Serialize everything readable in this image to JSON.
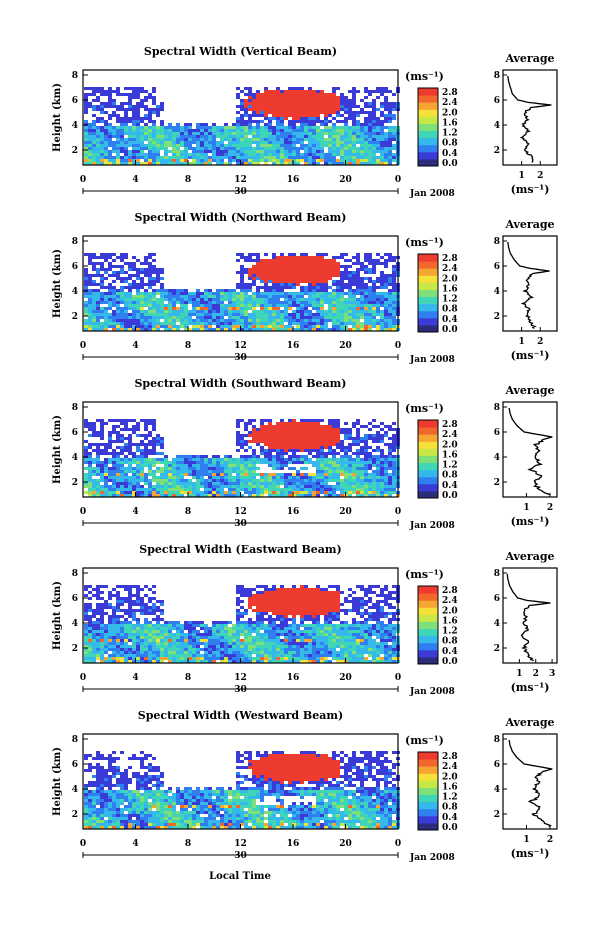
{
  "colorbar": {
    "unit": "(ms⁻¹)",
    "ticks": [
      "0.0",
      "0.4",
      "0.8",
      "1.2",
      "1.6",
      "2.0",
      "2.4",
      "2.8"
    ],
    "colors": [
      "#2c2c7a",
      "#3a3ad6",
      "#2f7ff0",
      "#35b8ea",
      "#3fd6b8",
      "#7fe07a",
      "#c8e84a",
      "#f5e13a",
      "#f7a532",
      "#f2682c",
      "#ee3b30"
    ]
  },
  "shared": {
    "xlabel": "Local Time",
    "date_label": "Jan 2008",
    "date_tick": "30",
    "x_ticks": [
      "0",
      "4",
      "8",
      "12",
      "16",
      "20",
      "0"
    ],
    "y_ticks": [
      "2",
      "4",
      "6",
      "8"
    ],
    "ylabel": "Height (km)",
    "avg_title": "Average",
    "avg_unit": "(ms⁻¹)"
  },
  "chart_data": [
    {
      "type": "heatmap",
      "title": "Spectral Width (Vertical Beam)",
      "ylim": [
        0.8,
        8.4
      ],
      "xlim_hours": [
        0,
        24
      ],
      "avg_profile": {
        "x_ticks": [
          "1",
          "2"
        ],
        "xlim": [
          0,
          2.9
        ],
        "height": [
          1.0,
          1.5,
          2.0,
          2.5,
          3.0,
          3.5,
          4.0,
          4.5,
          5.0,
          5.4,
          5.6,
          5.8,
          6.0,
          6.5,
          7.0,
          7.5,
          8.0
        ],
        "width": [
          1.6,
          1.5,
          1.2,
          1.3,
          1.0,
          1.4,
          1.1,
          1.3,
          1.2,
          1.5,
          2.6,
          1.4,
          0.8,
          0.5,
          0.4,
          0.3,
          0.25
        ]
      }
    },
    {
      "type": "heatmap",
      "title": "Spectral Width (Northward Beam)",
      "ylim": [
        0.8,
        8.4
      ],
      "xlim_hours": [
        0,
        24
      ],
      "avg_profile": {
        "x_ticks": [
          "1",
          "2"
        ],
        "xlim": [
          0,
          2.9
        ],
        "height": [
          1.0,
          1.5,
          2.0,
          2.5,
          3.0,
          3.5,
          4.0,
          4.5,
          5.0,
          5.4,
          5.6,
          5.8,
          6.0,
          6.5,
          7.0,
          7.5,
          8.0
        ],
        "width": [
          1.7,
          1.5,
          1.3,
          1.4,
          1.1,
          1.5,
          1.2,
          1.4,
          1.3,
          1.6,
          2.5,
          1.5,
          0.9,
          0.6,
          0.4,
          0.3,
          0.25
        ]
      }
    },
    {
      "type": "heatmap",
      "title": "Spectral Width (Southward Beam)",
      "ylim": [
        0.8,
        8.4
      ],
      "xlim_hours": [
        0,
        24
      ],
      "avg_profile": {
        "x_ticks": [
          "1",
          "2"
        ],
        "xlim": [
          0,
          2.3
        ],
        "height": [
          1.0,
          1.5,
          2.0,
          2.5,
          3.0,
          3.5,
          4.0,
          4.5,
          5.0,
          5.4,
          5.6,
          5.8,
          6.0,
          6.5,
          7.0,
          7.5,
          8.0
        ],
        "width": [
          2.0,
          1.5,
          1.3,
          1.6,
          1.2,
          1.6,
          1.3,
          1.5,
          1.4,
          1.7,
          2.1,
          1.5,
          0.9,
          0.6,
          0.4,
          0.3,
          0.25
        ]
      }
    },
    {
      "type": "heatmap",
      "title": "Spectral Width (Eastward Beam)",
      "ylim": [
        0.8,
        8.4
      ],
      "xlim_hours": [
        0,
        24
      ],
      "avg_profile": {
        "x_ticks": [
          "1",
          "2",
          "3"
        ],
        "xlim": [
          0,
          3.3
        ],
        "height": [
          1.0,
          1.5,
          2.0,
          2.5,
          3.0,
          3.5,
          4.0,
          4.5,
          5.0,
          5.4,
          5.6,
          5.8,
          6.0,
          6.5,
          7.0,
          7.5,
          8.0
        ],
        "width": [
          1.8,
          1.5,
          1.3,
          1.5,
          1.2,
          1.5,
          1.3,
          1.4,
          1.3,
          1.6,
          2.9,
          1.5,
          0.9,
          0.6,
          0.4,
          0.3,
          0.25
        ]
      }
    },
    {
      "type": "heatmap",
      "title": "Spectral Width (Westward Beam)",
      "ylim": [
        0.8,
        8.4
      ],
      "xlim_hours": [
        0,
        24
      ],
      "avg_profile": {
        "x_ticks": [
          "1",
          "2"
        ],
        "xlim": [
          0,
          2.3
        ],
        "height": [
          1.0,
          1.5,
          2.0,
          2.5,
          3.0,
          3.5,
          4.0,
          4.5,
          5.0,
          5.4,
          5.6,
          5.8,
          6.0,
          6.5,
          7.0,
          7.5,
          8.0
        ],
        "width": [
          2.0,
          1.6,
          1.3,
          1.6,
          1.2,
          1.6,
          1.3,
          1.5,
          1.4,
          1.7,
          2.1,
          1.5,
          0.9,
          0.6,
          0.4,
          0.3,
          0.25
        ]
      }
    }
  ]
}
